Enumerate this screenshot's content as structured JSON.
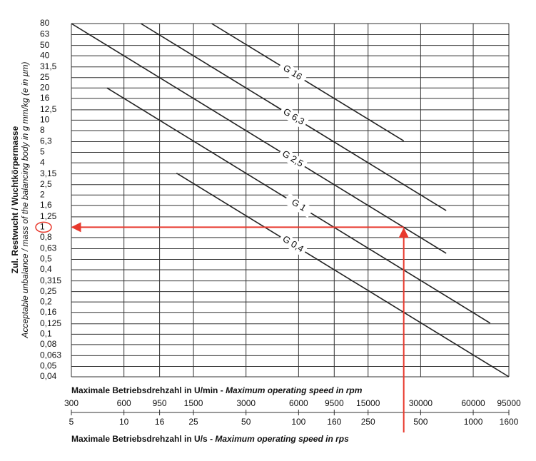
{
  "chart_data": {
    "type": "line",
    "log_x": true,
    "log_y": true,
    "grid": true,
    "ylabel": [
      "Zul. Restwucht / Wuchtkörpermasse",
      "Acceptable unbalance / mass of the balancing body in g mm/kg (e in µm)"
    ],
    "xlabel_top": [
      "Maximale Betriebsdrehzahl in U/min - ",
      "Maximum operating speed in rpm"
    ],
    "xlabel_bottom": [
      "Maximale Betriebsdrehzahl in U/s - ",
      "Maximum operating speed in rps"
    ],
    "xlim": [
      5,
      1600
    ],
    "xticks": [
      5,
      10,
      16,
      25,
      50,
      100,
      160,
      250,
      500,
      1000,
      1600
    ],
    "rpm_labels": [
      300,
      600,
      950,
      1500,
      3000,
      6000,
      9500,
      15000,
      30000,
      60000,
      95000
    ],
    "ylim": [
      0.04,
      80
    ],
    "yticks": [
      80,
      63,
      50,
      40,
      {
        "value": 31.5,
        "label": "31,5"
      },
      25,
      20,
      16,
      {
        "value": 12.5,
        "label": "12,5"
      },
      10,
      8,
      {
        "value": 6.3,
        "label": "6,3"
      },
      5,
      4,
      {
        "value": 3.15,
        "label": "3,15"
      },
      {
        "value": 2.5,
        "label": "2,5"
      },
      2,
      {
        "value": 1.6,
        "label": "1,6"
      },
      {
        "value": 1.25,
        "label": "1,25"
      },
      1,
      {
        "value": 0.8,
        "label": "0,8"
      },
      {
        "value": 0.63,
        "label": "0,63"
      },
      {
        "value": 0.5,
        "label": "0,5"
      },
      {
        "value": 0.4,
        "label": "0,4"
      },
      {
        "value": 0.315,
        "label": "0,315"
      },
      {
        "value": 0.25,
        "label": "0,25"
      },
      {
        "value": 0.2,
        "label": "0,2"
      },
      {
        "value": 0.16,
        "label": "0,16"
      },
      {
        "value": 0.125,
        "label": "0,125"
      },
      {
        "value": 0.1,
        "label": "0,1"
      },
      {
        "value": 0.08,
        "label": "0,08"
      },
      {
        "value": 0.063,
        "label": "0,063"
      },
      {
        "value": 0.05,
        "label": "0,05"
      },
      {
        "value": 0.04,
        "label": "0,04"
      }
    ],
    "series": [
      {
        "name": "G 16",
        "color": "#222222",
        "x": [
          31.8,
          400
        ],
        "values": [
          80,
          6.4
        ]
      },
      {
        "name": "G 6,3",
        "color": "#222222",
        "x": [
          12.5,
          700
        ],
        "values": [
          80,
          1.43
        ]
      },
      {
        "name": "G 2,5",
        "color": "#222222",
        "x": [
          5,
          700
        ],
        "values": [
          80,
          0.57
        ]
      },
      {
        "name": "G 1",
        "color": "#222222",
        "x": [
          8,
          1250
        ],
        "values": [
          20,
          0.127
        ]
      },
      {
        "name": "G 0,4",
        "color": "#222222",
        "x": [
          20,
          1600
        ],
        "values": [
          3.2,
          0.04
        ]
      }
    ],
    "highlight": {
      "x": 400,
      "y": 1,
      "color": "#e8392d"
    }
  }
}
